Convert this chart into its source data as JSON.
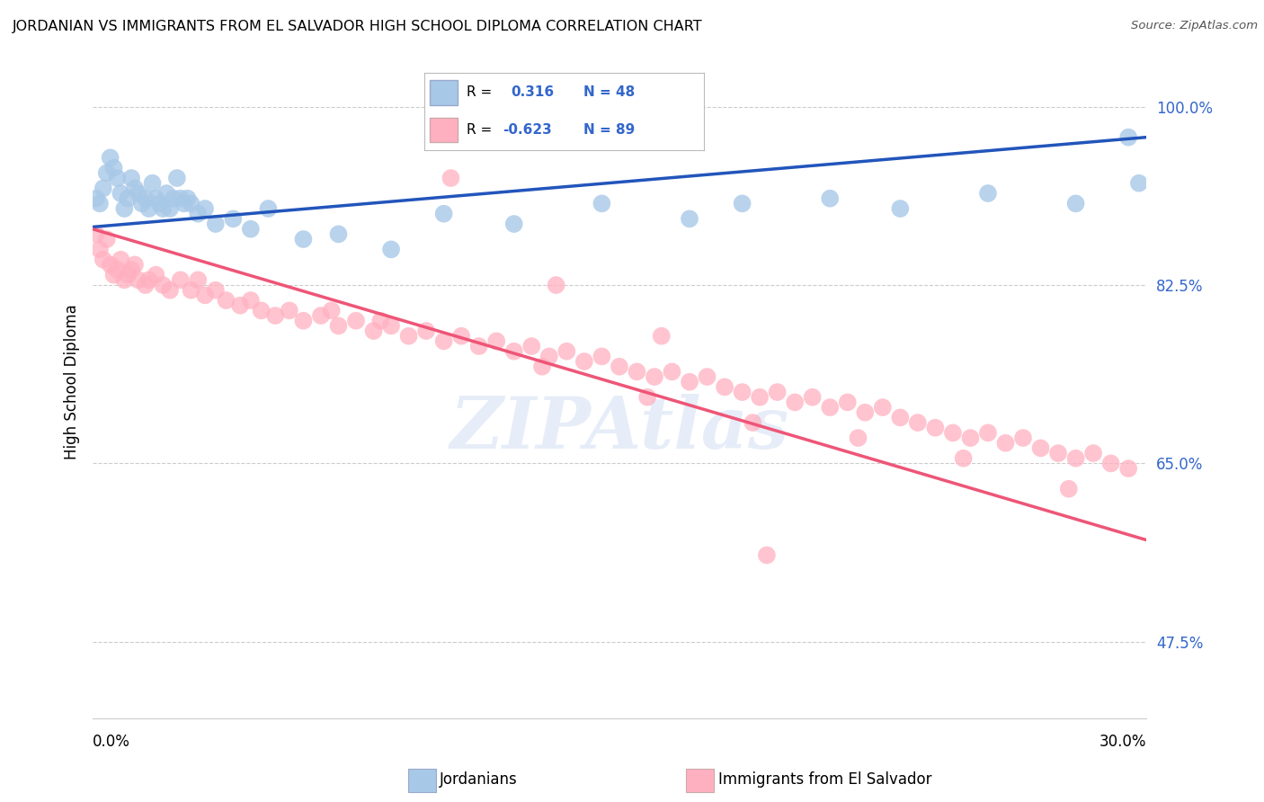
{
  "title": "JORDANIAN VS IMMIGRANTS FROM EL SALVADOR HIGH SCHOOL DIPLOMA CORRELATION CHART",
  "source": "Source: ZipAtlas.com",
  "ylabel": "High School Diploma",
  "yticks": [
    47.5,
    65.0,
    82.5,
    100.0
  ],
  "legend_jordanians": "Jordanians",
  "legend_salvador": "Immigrants from El Salvador",
  "r_jordanian": 0.316,
  "n_jordanian": 48,
  "r_salvador": -0.623,
  "n_salvador": 89,
  "blue_color": "#A8C8E8",
  "pink_color": "#FFB0C0",
  "line_blue": "#2255BB",
  "line_pink": "#EE5577",
  "xmin": 0.0,
  "xmax": 30.0,
  "ymin": 40.0,
  "ymax": 106.0,
  "blue_scatter_x": [
    0.1,
    0.2,
    0.3,
    0.4,
    0.5,
    0.6,
    0.7,
    0.8,
    0.9,
    1.0,
    1.1,
    1.2,
    1.3,
    1.4,
    1.5,
    1.6,
    1.7,
    1.8,
    1.9,
    2.0,
    2.1,
    2.2,
    2.3,
    2.4,
    2.5,
    2.6,
    2.7,
    2.8,
    3.0,
    3.2,
    3.5,
    4.0,
    4.5,
    5.0,
    6.0,
    7.0,
    8.5,
    10.0,
    12.0,
    14.5,
    17.0,
    18.5,
    21.0,
    23.0,
    25.5,
    28.0,
    29.5,
    29.8
  ],
  "blue_scatter_y": [
    91.0,
    90.5,
    92.0,
    93.5,
    95.0,
    94.0,
    93.0,
    91.5,
    90.0,
    91.0,
    93.0,
    92.0,
    91.5,
    90.5,
    91.0,
    90.0,
    92.5,
    91.0,
    90.5,
    90.0,
    91.5,
    90.0,
    91.0,
    93.0,
    91.0,
    90.5,
    91.0,
    90.5,
    89.5,
    90.0,
    88.5,
    89.0,
    88.0,
    90.0,
    87.0,
    87.5,
    86.0,
    89.5,
    88.5,
    90.5,
    89.0,
    90.5,
    91.0,
    90.0,
    91.5,
    90.5,
    97.0,
    92.5
  ],
  "pink_scatter_x": [
    0.1,
    0.2,
    0.3,
    0.4,
    0.5,
    0.6,
    0.7,
    0.8,
    0.9,
    1.0,
    1.1,
    1.2,
    1.3,
    1.5,
    1.6,
    1.8,
    2.0,
    2.2,
    2.5,
    2.8,
    3.0,
    3.2,
    3.5,
    3.8,
    4.2,
    4.8,
    5.2,
    5.6,
    6.0,
    6.5,
    7.0,
    7.5,
    8.0,
    8.5,
    9.0,
    9.5,
    10.0,
    10.5,
    11.0,
    11.5,
    12.0,
    12.5,
    13.0,
    13.5,
    14.0,
    14.5,
    15.0,
    15.5,
    16.0,
    16.5,
    17.0,
    17.5,
    18.0,
    18.5,
    19.0,
    19.5,
    20.0,
    20.5,
    21.0,
    21.5,
    22.0,
    22.5,
    23.0,
    23.5,
    24.0,
    24.5,
    25.0,
    25.5,
    26.0,
    26.5,
    27.0,
    27.5,
    28.0,
    28.5,
    29.0,
    29.5,
    4.5,
    6.8,
    8.2,
    12.8,
    15.8,
    18.8,
    21.8,
    24.8,
    27.8,
    10.2,
    13.2,
    16.2,
    19.2
  ],
  "pink_scatter_y": [
    87.5,
    86.0,
    85.0,
    87.0,
    84.5,
    83.5,
    84.0,
    85.0,
    83.0,
    83.5,
    84.0,
    84.5,
    83.0,
    82.5,
    83.0,
    83.5,
    82.5,
    82.0,
    83.0,
    82.0,
    83.0,
    81.5,
    82.0,
    81.0,
    80.5,
    80.0,
    79.5,
    80.0,
    79.0,
    79.5,
    78.5,
    79.0,
    78.0,
    78.5,
    77.5,
    78.0,
    77.0,
    77.5,
    76.5,
    77.0,
    76.0,
    76.5,
    75.5,
    76.0,
    75.0,
    75.5,
    74.5,
    74.0,
    73.5,
    74.0,
    73.0,
    73.5,
    72.5,
    72.0,
    71.5,
    72.0,
    71.0,
    71.5,
    70.5,
    71.0,
    70.0,
    70.5,
    69.5,
    69.0,
    68.5,
    68.0,
    67.5,
    68.0,
    67.0,
    67.5,
    66.5,
    66.0,
    65.5,
    66.0,
    65.0,
    64.5,
    81.0,
    80.0,
    79.0,
    74.5,
    71.5,
    69.0,
    67.5,
    65.5,
    62.5,
    93.0,
    82.5,
    77.5,
    56.0
  ],
  "watermark_text": "ZIPAtlas",
  "blue_line_y0": 88.2,
  "blue_line_y1": 97.0,
  "pink_line_y0": 88.0,
  "pink_line_y1": 57.5
}
